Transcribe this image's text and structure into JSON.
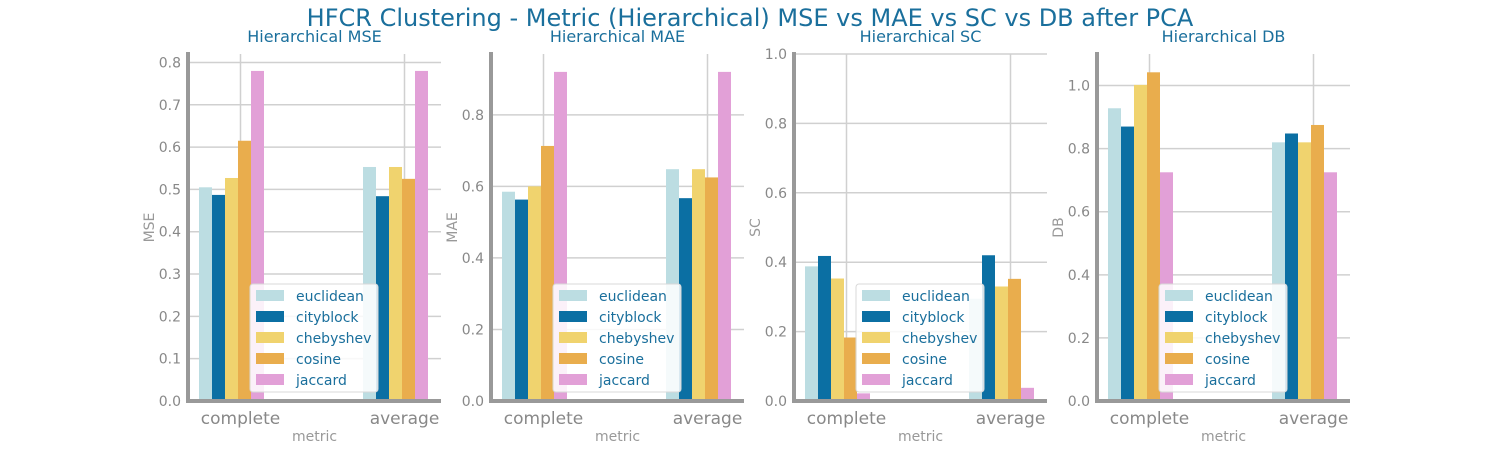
{
  "title": "HFCR Clustering - Metric (Hierarchical) MSE vs MAE vs SC vs DB after PCA",
  "colors": {
    "euclidean": "#bcdde2",
    "cityblock": "#0b6fa3",
    "chebyshev": "#f0d36e",
    "cosine": "#e9ad4d",
    "jaccard": "#e2a0d7",
    "title": "#1a6f9c"
  },
  "chart_data": [
    {
      "type": "bar",
      "title": "Hierarchical MSE",
      "xlabel": "metric",
      "ylabel": "MSE",
      "categories": [
        "complete",
        "average"
      ],
      "ylim": [
        0,
        0.82
      ],
      "yticks": [
        0.0,
        0.1,
        0.2,
        0.3,
        0.4,
        0.5,
        0.6,
        0.7,
        0.8
      ],
      "ytick_labels": [
        "0.0",
        "0.1",
        "0.2",
        "0.3",
        "0.4",
        "0.5",
        "0.6",
        "0.7",
        "0.8"
      ],
      "legend": "lower center",
      "grid": true,
      "series": [
        {
          "name": "euclidean",
          "values": [
            0.505,
            0.553
          ]
        },
        {
          "name": "cityblock",
          "values": [
            0.487,
            0.484
          ]
        },
        {
          "name": "chebyshev",
          "values": [
            0.527,
            0.553
          ]
        },
        {
          "name": "cosine",
          "values": [
            0.615,
            0.525
          ]
        },
        {
          "name": "jaccard",
          "values": [
            0.78,
            0.78
          ]
        }
      ]
    },
    {
      "type": "bar",
      "title": "Hierarchical MAE",
      "xlabel": "metric",
      "ylabel": "MAE",
      "categories": [
        "complete",
        "average"
      ],
      "ylim": [
        0,
        0.97
      ],
      "yticks": [
        0.0,
        0.2,
        0.4,
        0.6,
        0.8
      ],
      "ytick_labels": [
        "0.0",
        "0.2",
        "0.4",
        "0.6",
        "0.8"
      ],
      "legend": "lower center",
      "grid": true,
      "series": [
        {
          "name": "euclidean",
          "values": [
            0.585,
            0.648
          ]
        },
        {
          "name": "cityblock",
          "values": [
            0.563,
            0.567
          ]
        },
        {
          "name": "chebyshev",
          "values": [
            0.6,
            0.648
          ]
        },
        {
          "name": "cosine",
          "values": [
            0.713,
            0.625
          ]
        },
        {
          "name": "jaccard",
          "values": [
            0.92,
            0.92
          ]
        }
      ]
    },
    {
      "type": "bar",
      "title": "Hierarchical SC",
      "xlabel": "metric",
      "ylabel": "SC",
      "categories": [
        "complete",
        "average"
      ],
      "ylim": [
        0,
        1.0
      ],
      "yticks": [
        0.0,
        0.2,
        0.4,
        0.6,
        0.8,
        1.0
      ],
      "ytick_labels": [
        "0.0",
        "0.2",
        "0.4",
        "0.6",
        "0.8",
        "1.0"
      ],
      "legend": "lower center",
      "grid": true,
      "series": [
        {
          "name": "euclidean",
          "values": [
            0.388,
            0.295
          ]
        },
        {
          "name": "cityblock",
          "values": [
            0.418,
            0.42
          ]
        },
        {
          "name": "chebyshev",
          "values": [
            0.353,
            0.33
          ]
        },
        {
          "name": "cosine",
          "values": [
            0.183,
            0.352
          ]
        },
        {
          "name": "jaccard",
          "values": [
            0.022,
            0.038
          ]
        }
      ]
    },
    {
      "type": "bar",
      "title": "Hierarchical DB",
      "xlabel": "metric",
      "ylabel": "DB",
      "categories": [
        "complete",
        "average"
      ],
      "ylim": [
        0,
        1.1
      ],
      "yticks": [
        0.0,
        0.2,
        0.4,
        0.6,
        0.8,
        1.0
      ],
      "ytick_labels": [
        "0.0",
        "0.2",
        "0.4",
        "0.6",
        "0.8",
        "1.0"
      ],
      "legend": "lower center",
      "grid": true,
      "series": [
        {
          "name": "euclidean",
          "values": [
            0.928,
            0.82
          ]
        },
        {
          "name": "cityblock",
          "values": [
            0.87,
            0.848
          ]
        },
        {
          "name": "chebyshev",
          "values": [
            1.002,
            0.82
          ]
        },
        {
          "name": "cosine",
          "values": [
            1.042,
            0.875
          ]
        },
        {
          "name": "jaccard",
          "values": [
            0.725,
            0.725
          ]
        }
      ]
    }
  ]
}
